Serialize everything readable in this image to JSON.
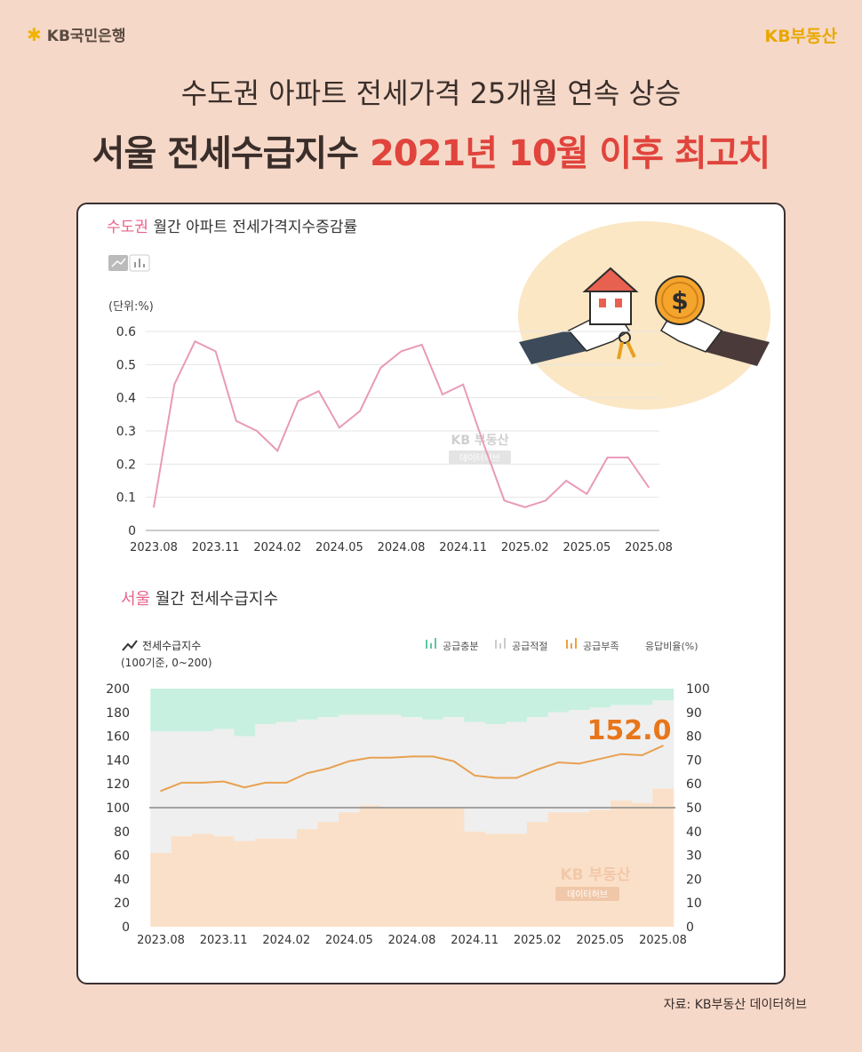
{
  "header": {
    "brand_left": "KB국민은행",
    "brand_right": "KB부동산",
    "title_line1": "수도권 아파트 전세가격 25개월 연속 상승",
    "title_line2_a": "서울 전세수급지수",
    "title_line2_b": "2021년 10월 이후 최고치"
  },
  "source": "자료: KB부동산 데이터허브",
  "watermark": {
    "line1": "KB 부동산",
    "line2": "데이터허브"
  },
  "colors": {
    "line1": "#e89ab8",
    "fill_orange": "#fbe0c9",
    "fill_mint": "#c8f0e0",
    "fill_gray": "#efefef",
    "line2": "#e8a050",
    "highlight": "#e8761a",
    "accent_pink": "#e8628a"
  },
  "chart_data": [
    {
      "type": "line",
      "title_highlight": "수도권",
      "title_rest": "월간 아파트 전세가격지수증감률",
      "unit_label": "(단위:%)",
      "ylim": [
        0,
        0.6
      ],
      "yticks": [
        "0",
        "0.1",
        "0.2",
        "0.3",
        "0.4",
        "0.5",
        "0.6"
      ],
      "xtick_labels": [
        "2023.08",
        "2023.11",
        "2024.02",
        "2024.05",
        "2024.08",
        "2024.11",
        "2025.02",
        "2025.05",
        "2025.08"
      ],
      "values": [
        0.07,
        0.44,
        0.57,
        0.54,
        0.33,
        0.3,
        0.24,
        0.39,
        0.42,
        0.31,
        0.36,
        0.49,
        0.54,
        0.56,
        0.41,
        0.44,
        0.26,
        0.09,
        0.07,
        0.09,
        0.15,
        0.11,
        0.22,
        0.22,
        0.13
      ]
    },
    {
      "type": "area",
      "title_highlight": "서울",
      "title_rest": "월간 전세수급지수",
      "legend": {
        "line_label": "전세수급지수",
        "line_sub": "(100기준, 0~200)",
        "items": [
          "공급충분",
          "공급적절",
          "공급부족",
          "응답비율(%)"
        ]
      },
      "ylim_left": [
        0,
        200
      ],
      "ylim_right": [
        0,
        100
      ],
      "yticks_left": [
        "0",
        "20",
        "40",
        "60",
        "80",
        "100",
        "120",
        "140",
        "160",
        "180",
        "200"
      ],
      "yticks_right": [
        "0",
        "10",
        "20",
        "30",
        "40",
        "50",
        "60",
        "70",
        "80",
        "90",
        "100"
      ],
      "xtick_labels": [
        "2023.08",
        "2023.11",
        "2024.02",
        "2024.05",
        "2024.08",
        "2024.11",
        "2025.02",
        "2025.05",
        "2025.08"
      ],
      "index_values": [
        114,
        121,
        121,
        122,
        117,
        121,
        121,
        129,
        133,
        139,
        142,
        142,
        143,
        143,
        139,
        127,
        125,
        125,
        132,
        138,
        137,
        141,
        145,
        144,
        152
      ],
      "shortage_pct": [
        31,
        38,
        39,
        38,
        36,
        37,
        37,
        41,
        44,
        48,
        51,
        50,
        50,
        50,
        50,
        40,
        39,
        39,
        44,
        48,
        48,
        49,
        53,
        52,
        58
      ],
      "sufficient_pct": [
        18,
        18,
        18,
        17,
        20,
        15,
        14,
        13,
        12,
        11,
        11,
        11,
        12,
        13,
        12,
        14,
        15,
        14,
        12,
        10,
        9,
        8,
        7,
        7,
        5
      ],
      "highlight_label": "152.0",
      "reference_line": 100
    }
  ]
}
